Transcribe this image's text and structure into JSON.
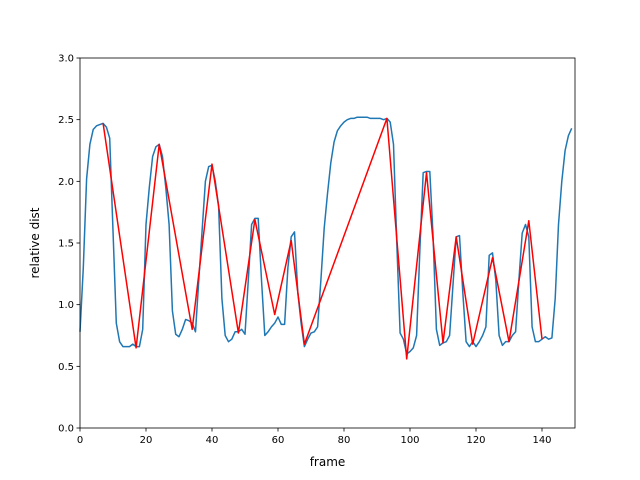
{
  "chart_data": {
    "type": "line",
    "xlabel": "frame",
    "ylabel": "relative dist",
    "xlim": [
      0,
      150
    ],
    "ylim": [
      0,
      3.0
    ],
    "xticks": [
      0,
      20,
      40,
      60,
      80,
      100,
      120,
      140
    ],
    "yticks": [
      {
        "value": 0,
        "label": "0.0"
      },
      0.5,
      {
        "value": 1,
        "label": "1.0"
      },
      1.5,
      {
        "value": 2,
        "label": "2.0"
      },
      2.5,
      {
        "value": 3,
        "label": "3.0"
      }
    ],
    "series": [
      {
        "color": "#1f77b4",
        "x": [
          0,
          1,
          2,
          3,
          4,
          5,
          6,
          7,
          8,
          9,
          10,
          11,
          12,
          13,
          14,
          15,
          16,
          17,
          18,
          19,
          20,
          21,
          22,
          23,
          24,
          25,
          26,
          27,
          28,
          29,
          30,
          31,
          32,
          33,
          34,
          35,
          36,
          37,
          38,
          39,
          40,
          41,
          42,
          43,
          44,
          45,
          46,
          47,
          48,
          49,
          50,
          51,
          52,
          53,
          54,
          55,
          56,
          57,
          58,
          59,
          60,
          61,
          62,
          63,
          64,
          65,
          66,
          67,
          68,
          69,
          70,
          71,
          72,
          73,
          74,
          75,
          76,
          77,
          78,
          79,
          80,
          81,
          82,
          83,
          84,
          85,
          86,
          87,
          88,
          89,
          90,
          91,
          92,
          93,
          94,
          95,
          96,
          97,
          98,
          99,
          100,
          101,
          102,
          103,
          104,
          105,
          106,
          107,
          108,
          109,
          110,
          111,
          112,
          113,
          114,
          115,
          116,
          117,
          118,
          119,
          120,
          121,
          122,
          123,
          124,
          125,
          126,
          127,
          128,
          129,
          130,
          131,
          132,
          133,
          134,
          135,
          136,
          137,
          138,
          139,
          140,
          141,
          142,
          143,
          144,
          145,
          146,
          147,
          148,
          149
        ],
        "values": [
          0.78,
          1.3,
          2.02,
          2.3,
          2.42,
          2.45,
          2.46,
          2.47,
          2.44,
          2.35,
          1.6,
          0.85,
          0.7,
          0.66,
          0.66,
          0.66,
          0.68,
          0.66,
          0.66,
          0.8,
          1.65,
          1.95,
          2.2,
          2.28,
          2.3,
          2.2,
          1.95,
          1.65,
          0.95,
          0.76,
          0.74,
          0.8,
          0.88,
          0.87,
          0.85,
          0.78,
          1.2,
          1.6,
          2.0,
          2.12,
          2.13,
          2.0,
          1.8,
          1.05,
          0.75,
          0.7,
          0.72,
          0.78,
          0.78,
          0.8,
          0.76,
          1.2,
          1.65,
          1.7,
          1.7,
          1.2,
          0.75,
          0.78,
          0.82,
          0.85,
          0.9,
          0.84,
          0.84,
          1.3,
          1.55,
          1.59,
          1.1,
          0.85,
          0.66,
          0.72,
          0.77,
          0.78,
          0.82,
          1.2,
          1.62,
          1.9,
          2.15,
          2.32,
          2.41,
          2.45,
          2.48,
          2.5,
          2.51,
          2.51,
          2.52,
          2.52,
          2.52,
          2.52,
          2.51,
          2.51,
          2.51,
          2.51,
          2.5,
          2.51,
          2.48,
          2.3,
          1.5,
          0.77,
          0.72,
          0.6,
          0.62,
          0.65,
          0.75,
          1.45,
          2.07,
          2.08,
          2.08,
          1.55,
          0.8,
          0.67,
          0.69,
          0.7,
          0.75,
          1.15,
          1.55,
          1.56,
          1.1,
          0.7,
          0.66,
          0.7,
          0.66,
          0.7,
          0.75,
          0.82,
          1.4,
          1.42,
          1.2,
          0.75,
          0.67,
          0.7,
          0.7,
          0.75,
          0.78,
          1.2,
          1.58,
          1.65,
          1.55,
          0.82,
          0.7,
          0.7,
          0.72,
          0.74,
          0.72,
          0.73,
          1.05,
          1.65,
          2.0,
          2.25,
          2.37,
          2.43
        ]
      },
      {
        "color": "#ff0000",
        "x": [
          7,
          17,
          24,
          34,
          40,
          48,
          53,
          59,
          64,
          68,
          93,
          99,
          105,
          110,
          114,
          119,
          125,
          130,
          136,
          140
        ],
        "values": [
          2.47,
          0.65,
          2.3,
          0.8,
          2.14,
          0.77,
          1.69,
          0.92,
          1.52,
          0.68,
          2.51,
          0.56,
          2.07,
          0.69,
          1.55,
          0.68,
          1.38,
          0.7,
          1.68,
          0.72
        ]
      }
    ]
  }
}
